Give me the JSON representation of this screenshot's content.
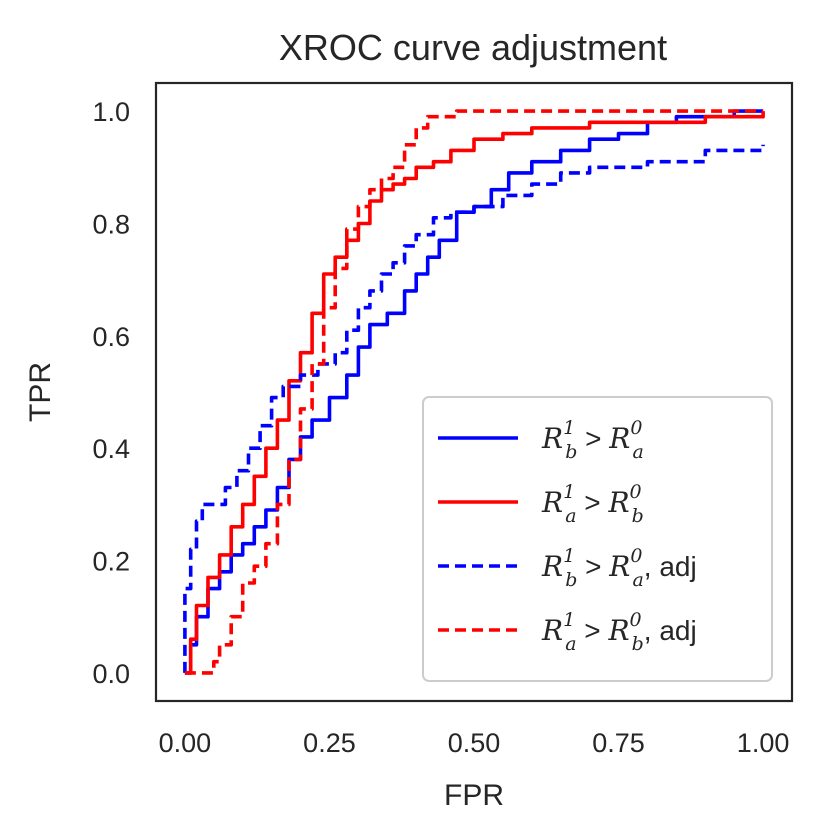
{
  "chart_data": {
    "type": "line",
    "title": "XROC curve adjustment",
    "xlabel": "FPR",
    "ylabel": "TPR",
    "xlim": [
      -0.05,
      1.05
    ],
    "ylim": [
      -0.05,
      1.05
    ],
    "xticks": [
      0.0,
      0.25,
      0.5,
      0.75,
      1.0
    ],
    "xtick_labels": [
      "0.00",
      "0.25",
      "0.50",
      "0.75",
      "1.00"
    ],
    "yticks": [
      0.0,
      0.2,
      0.4,
      0.6,
      0.8,
      1.0
    ],
    "ytick_labels": [
      "0.0",
      "0.2",
      "0.4",
      "0.6",
      "0.8",
      "1.0"
    ],
    "grid": false,
    "legend_position": "lower-right",
    "series": [
      {
        "name": "R_b^1 > R_a^0",
        "legend": {
          "r": "R",
          "sub1": "b",
          "sup1": "1",
          "op": " > ",
          "r2": "R",
          "sub2": "a",
          "sup2": "0",
          "suffix": ""
        },
        "color": "#0000ff",
        "style": "solid",
        "x": [
          0.0,
          0.01,
          0.02,
          0.04,
          0.06,
          0.08,
          0.1,
          0.12,
          0.14,
          0.16,
          0.18,
          0.2,
          0.22,
          0.25,
          0.28,
          0.3,
          0.32,
          0.35,
          0.38,
          0.4,
          0.42,
          0.44,
          0.47,
          0.5,
          0.53,
          0.56,
          0.6,
          0.65,
          0.7,
          0.75,
          0.8,
          0.85,
          0.9,
          0.95,
          1.0
        ],
        "y": [
          0.0,
          0.05,
          0.1,
          0.15,
          0.18,
          0.21,
          0.23,
          0.26,
          0.29,
          0.33,
          0.38,
          0.42,
          0.45,
          0.49,
          0.53,
          0.58,
          0.62,
          0.64,
          0.68,
          0.71,
          0.74,
          0.77,
          0.82,
          0.83,
          0.86,
          0.89,
          0.91,
          0.93,
          0.95,
          0.96,
          0.98,
          0.99,
          0.99,
          1.0,
          1.0
        ]
      },
      {
        "name": "R_a^1 > R_b^0",
        "legend": {
          "r": "R",
          "sub1": "a",
          "sup1": "1",
          "op": " > ",
          "r2": "R",
          "sub2": "b",
          "sup2": "0",
          "suffix": ""
        },
        "color": "#ff0000",
        "style": "solid",
        "x": [
          0.0,
          0.01,
          0.02,
          0.04,
          0.06,
          0.08,
          0.1,
          0.12,
          0.14,
          0.16,
          0.18,
          0.2,
          0.22,
          0.24,
          0.26,
          0.28,
          0.3,
          0.32,
          0.34,
          0.36,
          0.38,
          0.4,
          0.43,
          0.46,
          0.5,
          0.55,
          0.6,
          0.65,
          0.7,
          0.8,
          0.9,
          1.0
        ],
        "y": [
          0.0,
          0.06,
          0.12,
          0.17,
          0.21,
          0.26,
          0.3,
          0.35,
          0.4,
          0.45,
          0.52,
          0.57,
          0.64,
          0.71,
          0.74,
          0.77,
          0.8,
          0.84,
          0.86,
          0.87,
          0.88,
          0.9,
          0.91,
          0.93,
          0.95,
          0.96,
          0.97,
          0.97,
          0.98,
          0.98,
          0.99,
          1.0
        ]
      },
      {
        "name": "R_b^1 > R_a^0, adj",
        "legend": {
          "r": "R",
          "sub1": "b",
          "sup1": "1",
          "op": " > ",
          "r2": "R",
          "sub2": "a",
          "sup2": "0",
          "suffix": ", adj"
        },
        "color": "#0000ff",
        "style": "dashed",
        "x": [
          0.0,
          0.0,
          0.01,
          0.02,
          0.03,
          0.05,
          0.07,
          0.09,
          0.11,
          0.13,
          0.15,
          0.17,
          0.2,
          0.23,
          0.26,
          0.28,
          0.3,
          0.32,
          0.34,
          0.36,
          0.38,
          0.4,
          0.43,
          0.46,
          0.5,
          0.55,
          0.6,
          0.65,
          0.7,
          0.8,
          0.9,
          1.0
        ],
        "y": [
          0.0,
          0.15,
          0.22,
          0.27,
          0.3,
          0.3,
          0.33,
          0.36,
          0.4,
          0.44,
          0.49,
          0.51,
          0.53,
          0.55,
          0.57,
          0.61,
          0.65,
          0.68,
          0.71,
          0.73,
          0.76,
          0.78,
          0.81,
          0.82,
          0.83,
          0.85,
          0.87,
          0.89,
          0.9,
          0.91,
          0.93,
          0.94
        ]
      },
      {
        "name": "R_a^1 > R_b^0, adj",
        "legend": {
          "r": "R",
          "sub1": "a",
          "sup1": "1",
          "op": " > ",
          "r2": "R",
          "sub2": "b",
          "sup2": "0",
          "suffix": ", adj"
        },
        "color": "#ff0000",
        "style": "dashed",
        "x": [
          0.0,
          0.02,
          0.04,
          0.05,
          0.06,
          0.08,
          0.1,
          0.12,
          0.14,
          0.16,
          0.18,
          0.2,
          0.22,
          0.24,
          0.26,
          0.28,
          0.3,
          0.32,
          0.34,
          0.36,
          0.38,
          0.4,
          0.42,
          0.44,
          0.47,
          0.5,
          0.55,
          0.6,
          0.7,
          0.8,
          0.9,
          1.0
        ],
        "y": [
          0.0,
          0.0,
          0.0,
          0.02,
          0.05,
          0.1,
          0.16,
          0.19,
          0.23,
          0.3,
          0.38,
          0.47,
          0.55,
          0.65,
          0.72,
          0.79,
          0.83,
          0.86,
          0.88,
          0.9,
          0.94,
          0.97,
          0.99,
          0.99,
          1.0,
          1.0,
          1.0,
          1.0,
          1.0,
          1.0,
          1.0,
          1.0
        ]
      }
    ]
  }
}
